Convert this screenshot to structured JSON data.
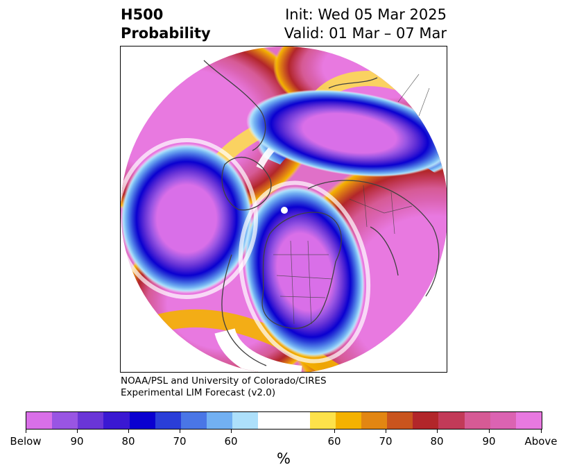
{
  "title": {
    "line1": "H500",
    "line2": "Probability",
    "init": "Init: Wed 05 Mar 2025",
    "valid": "Valid: 01 Mar – 07 Mar"
  },
  "credit": {
    "line1": "NOAA/PSL and University of Colorado/CIRES",
    "line2": "Experimental LIM Forecast (v2.0)"
  },
  "map": {
    "projection": "north-polar-stereographic",
    "features": [
      "coastlines",
      "country-borders",
      "us-state-borders",
      "north-pole-marker"
    ],
    "anomaly_regions": [
      {
        "region": "Eastern Pacific / western North America",
        "category": "below",
        "peak_percent": "Below"
      },
      {
        "region": "Central and eastern North America / Hudson Bay",
        "category": "below",
        "peak_percent": "Below"
      },
      {
        "region": "Northern Europe / Scandinavia / western Russia",
        "category": "below",
        "peak_percent": "90"
      },
      {
        "region": "Northeast Atlantic / Greenland",
        "category": "above",
        "peak_percent": "Above"
      },
      {
        "region": "Siberia / East Asia",
        "category": "above",
        "peak_percent": "Above"
      },
      {
        "region": "Alaska / Bering Sea",
        "category": "above",
        "peak_percent": "Above"
      },
      {
        "region": "Central Asia / Middle East",
        "category": "above",
        "peak_percent": "Above"
      }
    ]
  },
  "colorbar": {
    "unit": "%",
    "colors": [
      "#d96fe8",
      "#9955e3",
      "#6a35d7",
      "#3a18d2",
      "#0a00d0",
      "#2a3ed8",
      "#4a76e6",
      "#72b0f2",
      "#ade0fb",
      "#ffffff",
      "#fde24a",
      "#f4b200",
      "#e28612",
      "#c9541e",
      "#b2262a",
      "#c23a58",
      "#d65a95",
      "#db63b2",
      "#e879e0"
    ],
    "tick_labels": [
      "Below",
      "90",
      "80",
      "70",
      "60",
      "60",
      "70",
      "80",
      "90",
      "Above"
    ]
  }
}
